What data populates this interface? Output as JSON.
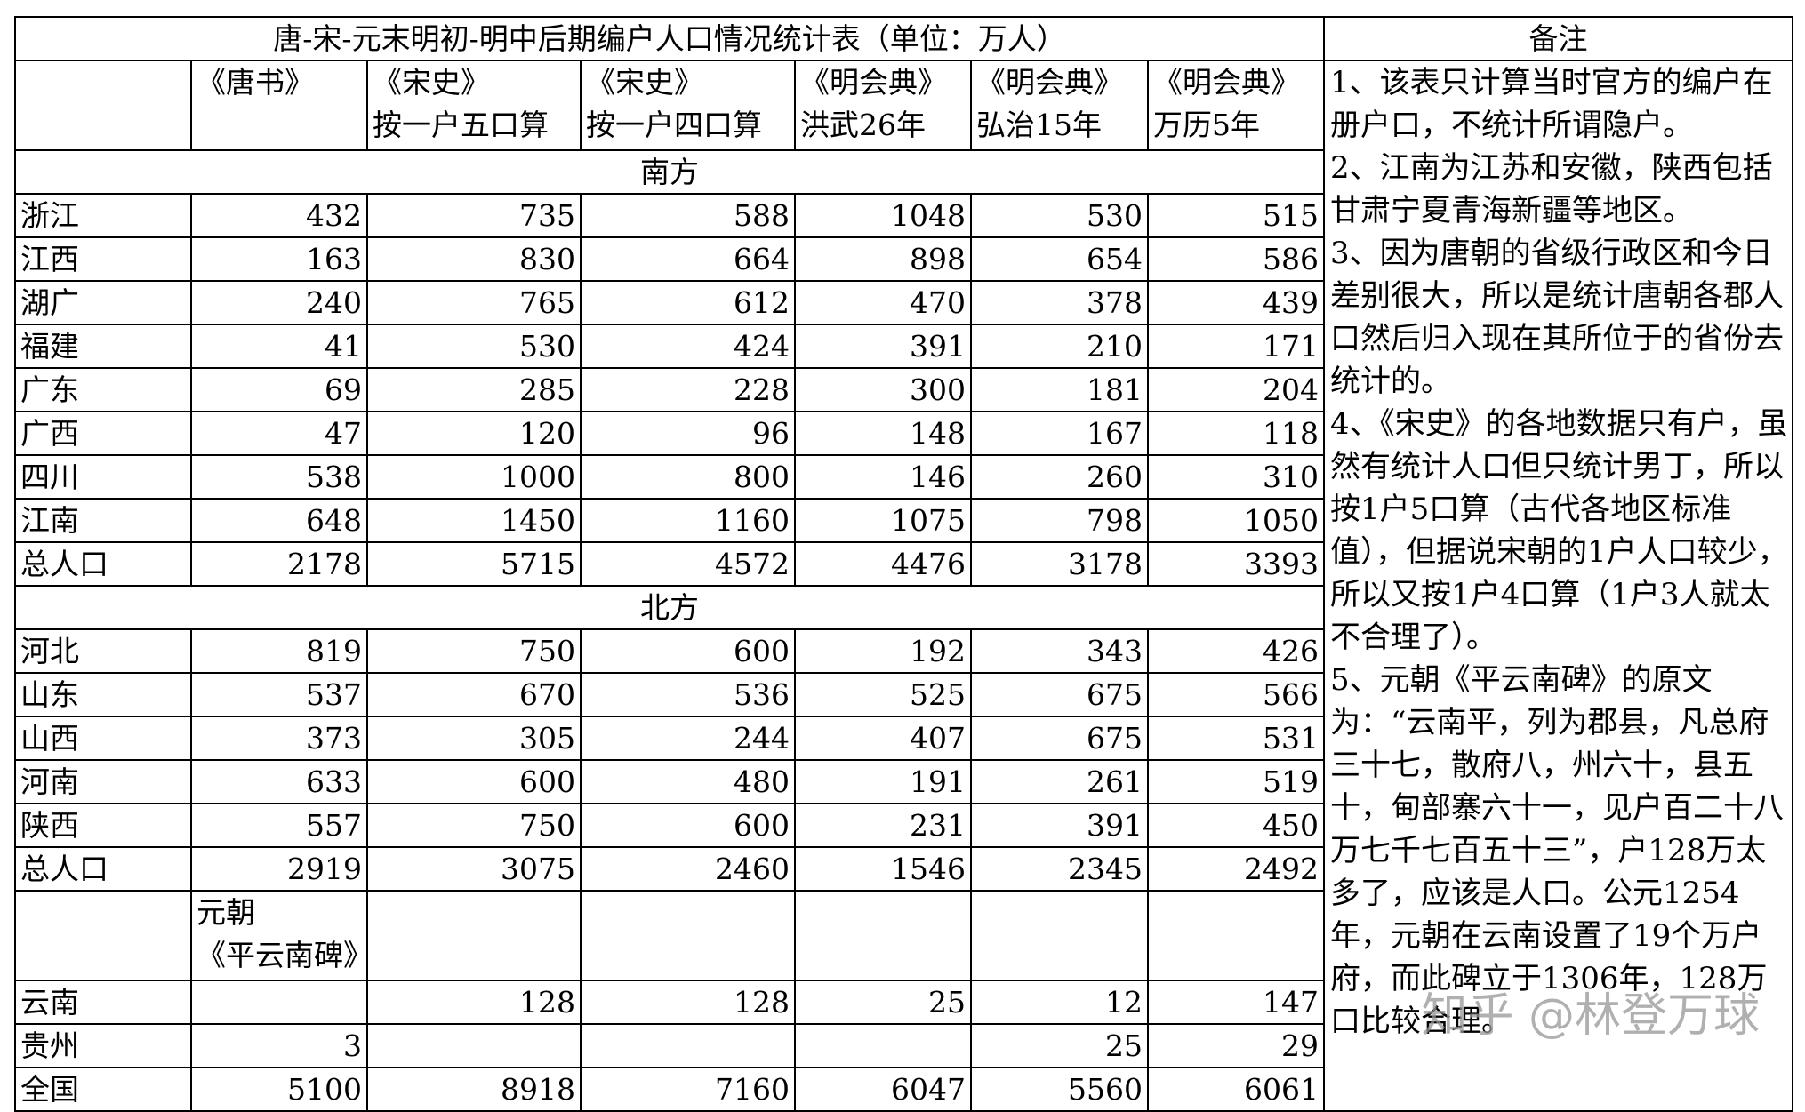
{
  "title": "唐-宋-元末明初-明中后期编户人口情况统计表（单位：万人）",
  "remarks_header": "备注",
  "columns": [
    [
      "《唐书》"
    ],
    [
      "《宋史》",
      "按一户五口算"
    ],
    [
      "《宋史》",
      "按一户四口算"
    ],
    [
      "《明会典》",
      "洪武26年"
    ],
    [
      "《明会典》",
      "弘治15年"
    ],
    [
      "《明会典》",
      "万历5年"
    ]
  ],
  "sections": [
    {
      "name": "南方",
      "rows": [
        {
          "label": "浙江",
          "values": [
            432,
            735,
            588,
            1048,
            530,
            515
          ]
        },
        {
          "label": "江西",
          "values": [
            163,
            830,
            664,
            898,
            654,
            586
          ]
        },
        {
          "label": "湖广",
          "values": [
            240,
            765,
            612,
            470,
            378,
            439
          ]
        },
        {
          "label": "福建",
          "values": [
            41,
            530,
            424,
            391,
            210,
            171
          ]
        },
        {
          "label": "广东",
          "values": [
            69,
            285,
            228,
            300,
            181,
            204
          ]
        },
        {
          "label": "广西",
          "values": [
            47,
            120,
            96,
            148,
            167,
            118
          ]
        },
        {
          "label": "四川",
          "values": [
            538,
            1000,
            800,
            146,
            260,
            310
          ]
        },
        {
          "label": "江南",
          "values": [
            648,
            1450,
            1160,
            1075,
            798,
            1050
          ]
        },
        {
          "label": "总人口",
          "values": [
            2178,
            5715,
            4572,
            4476,
            3178,
            3393
          ]
        }
      ]
    },
    {
      "name": "北方",
      "rows": [
        {
          "label": "河北",
          "values": [
            819,
            750,
            600,
            192,
            343,
            426
          ]
        },
        {
          "label": "山东",
          "values": [
            537,
            670,
            536,
            525,
            675,
            566
          ]
        },
        {
          "label": "山西",
          "values": [
            373,
            305,
            244,
            407,
            675,
            531
          ]
        },
        {
          "label": "河南",
          "values": [
            633,
            600,
            480,
            191,
            261,
            519
          ]
        },
        {
          "label": "陕西",
          "values": [
            557,
            750,
            600,
            231,
            391,
            450
          ]
        },
        {
          "label": "总人口",
          "values": [
            2919,
            3075,
            2460,
            1546,
            2345,
            2492
          ]
        }
      ]
    }
  ],
  "yuan_note": [
    "元朝",
    "《平云南碑》"
  ],
  "extra_rows": [
    {
      "label": "云南",
      "values": [
        null,
        128,
        128,
        25,
        12,
        147
      ]
    },
    {
      "label": "贵州",
      "values": [
        3,
        null,
        null,
        null,
        25,
        29
      ]
    },
    {
      "label": "全国",
      "values": [
        5100,
        8918,
        7160,
        6047,
        5560,
        6061
      ]
    }
  ],
  "notes": [
    "1、该表只计算当时官方的编户在册户口，不统计所谓隐户。",
    "2、江南为江苏和安徽，陕西包括甘肃宁夏青海新疆等地区。",
    "3、因为唐朝的省级行政区和今日差别很大，所以是统计唐朝各郡人口然后归入现在其所位于的省份去统计的。",
    "4、《宋史》的各地数据只有户，虽然有统计人口但只统计男丁，所以按1户5口算（古代各地区标准值），但据说宋朝的1户人口较少，所以又按1户4口算（1户3人就太不合理了）。",
    "5、元朝《平云南碑》的原文为：“云南平，列为郡县，凡总府三十七，散府八，州六十，县五十，甸部寨六十一，见户百二十八万七千七百五十三”，户128万太多了，应该是人口。公元1254年，元朝在云南设置了19个万户府，而此碑立于1306年，128万口比较合理。"
  ],
  "watermark": "知乎 @林登万球"
}
